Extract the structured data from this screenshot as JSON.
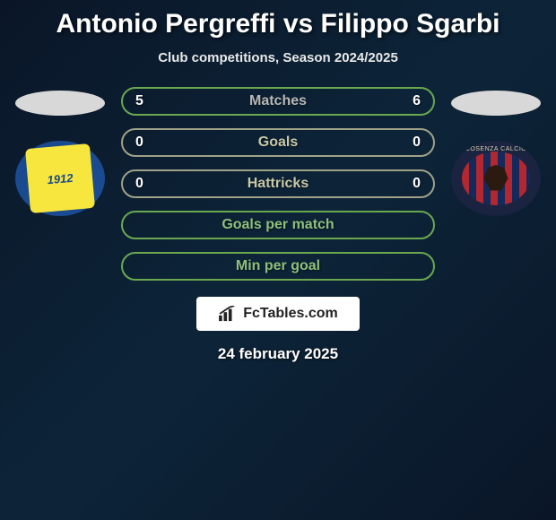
{
  "title": "Antonio Pergreffi vs Filippo Sgarbi",
  "subtitle": "Club competitions, Season 2024/2025",
  "date": "24 february 2025",
  "brand": "FcTables.com",
  "left_team": {
    "crest_text": "1912",
    "crest_bg": "#f7e63e",
    "ring": "#1a4a8f"
  },
  "right_team": {
    "label": "COSENZA CALCIO"
  },
  "rows": [
    {
      "label": "Matches",
      "left": "5",
      "right": "6",
      "border": "#6aa84f",
      "label_color": "#b7b7b7"
    },
    {
      "label": "Goals",
      "left": "0",
      "right": "0",
      "border": "#a0a288",
      "label_color": "#c6c8a6"
    },
    {
      "label": "Hattricks",
      "left": "0",
      "right": "0",
      "border": "#a0a288",
      "label_color": "#c6c8a6"
    },
    {
      "label": "Goals per match",
      "left": "",
      "right": "",
      "border": "#6aa84f",
      "label_color": "#8fbf7a"
    },
    {
      "label": "Min per goal",
      "left": "",
      "right": "",
      "border": "#6aa84f",
      "label_color": "#8fbf7a"
    }
  ]
}
